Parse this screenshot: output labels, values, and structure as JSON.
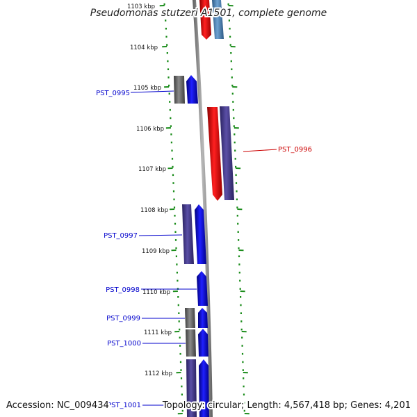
{
  "header": {
    "title": "Pseudomonas stutzeri A1501, complete genome"
  },
  "footer": {
    "accession": "Accession: NC_009434",
    "summary": "Topology: circular; Length: 4,567,418 bp; Genes: 4,201"
  },
  "ticks": [
    {
      "label": "1103 kbp",
      "faded": true
    },
    {
      "label": "1104 kbp"
    },
    {
      "label": "1105 kbp"
    },
    {
      "label": "1106 kbp"
    },
    {
      "label": "1107 kbp"
    },
    {
      "label": "1108 kbp"
    },
    {
      "label": "1109 kbp"
    },
    {
      "label": "1110 kbp"
    },
    {
      "label": "1111 kbp"
    },
    {
      "label": "1112 kbp"
    }
  ],
  "gene_labels": [
    {
      "name": "PST_0995",
      "color": "#0000cc"
    },
    {
      "name": "PST_0996",
      "color": "#cc0000"
    },
    {
      "name": "PST_0997",
      "color": "#0000cc"
    },
    {
      "name": "PST_0998",
      "color": "#0000cc"
    },
    {
      "name": "PST_0999",
      "color": "#0000cc"
    },
    {
      "name": "PST_1000",
      "color": "#0000cc"
    },
    {
      "name": "PST_1001",
      "color": "#0000cc"
    }
  ],
  "colors": {
    "backbone": "#8c8c8c",
    "tick_ring": "#1a8c1a",
    "forward_cds": "#0000ee",
    "reverse_cds": "#ee0000",
    "cog_purple": "#4a3f8f",
    "cog_steel": "#4f86b8",
    "cog_gray": "#6e6e6e"
  }
}
